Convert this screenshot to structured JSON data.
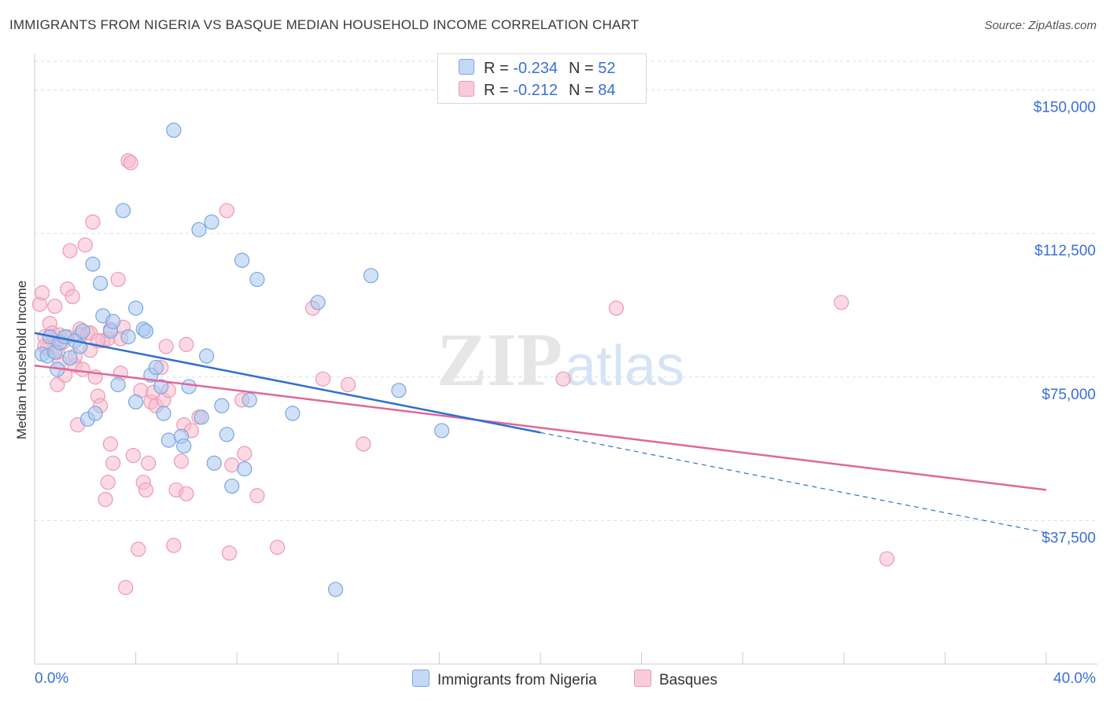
{
  "title": "IMMIGRANTS FROM NIGERIA VS BASQUE MEDIAN HOUSEHOLD INCOME CORRELATION CHART",
  "source": "Source: ZipAtlas.com",
  "watermark": {
    "zip": "ZIP",
    "atlas": "atlas"
  },
  "legend": {
    "rows": [
      {
        "r_label": "R =",
        "r_value": "-0.234",
        "n_label": "N =",
        "n_value": "52"
      },
      {
        "r_label": "R =",
        "r_value": "-0.212",
        "n_label": "N =",
        "n_value": "84"
      }
    ]
  },
  "colors": {
    "nigeria_fill": "#aac8f0",
    "nigeria_stroke": "#7aa6e0",
    "nigeria_line": "#2f6fd1",
    "basque_fill": "#f7bccd",
    "basque_stroke": "#ee98b3",
    "basque_line": "#e0679a",
    "axis_text": "#3a6fd6",
    "grid": "#dddddd"
  },
  "chart_data": {
    "type": "scatter",
    "title": "IMMIGRANTS FROM NIGERIA VS BASQUE MEDIAN HOUSEHOLD INCOME CORRELATION CHART",
    "xlabel": "",
    "ylabel": "Median Household Income",
    "xlim": [
      0,
      40
    ],
    "ylim": [
      0,
      157500
    ],
    "x_tick_labels": [
      "0.0%",
      "40.0%"
    ],
    "y_ticks": [
      37500,
      75000,
      112500,
      150000
    ],
    "y_tick_labels": [
      "$37,500",
      "$75,000",
      "$112,500",
      "$150,000"
    ],
    "grid": true,
    "legend_position": "top-center",
    "series": [
      {
        "name": "Immigrants from Nigeria",
        "color": "#aac8f0",
        "trend": {
          "x": [
            0.0,
            20.0
          ],
          "y": [
            86500,
            60500
          ],
          "dashed_extension": {
            "x": [
              20.0,
              40.0
            ],
            "y": [
              60500,
              34300
            ]
          }
        },
        "points": [
          [
            0.3,
            81000
          ],
          [
            0.5,
            80500
          ],
          [
            0.6,
            85500
          ],
          [
            0.8,
            81500
          ],
          [
            0.9,
            77000
          ],
          [
            1.0,
            84000
          ],
          [
            1.2,
            85500
          ],
          [
            1.4,
            80000
          ],
          [
            1.6,
            84500
          ],
          [
            1.8,
            83000
          ],
          [
            1.9,
            87000
          ],
          [
            2.1,
            64000
          ],
          [
            2.3,
            104500
          ],
          [
            2.4,
            65500
          ],
          [
            2.6,
            99500
          ],
          [
            2.7,
            91000
          ],
          [
            3.0,
            87000
          ],
          [
            3.1,
            89500
          ],
          [
            3.3,
            73000
          ],
          [
            3.5,
            118500
          ],
          [
            3.7,
            85500
          ],
          [
            4.0,
            93000
          ],
          [
            4.0,
            68500
          ],
          [
            4.3,
            87500
          ],
          [
            4.4,
            87000
          ],
          [
            4.6,
            75500
          ],
          [
            4.8,
            77500
          ],
          [
            5.0,
            72500
          ],
          [
            5.1,
            65500
          ],
          [
            5.3,
            58500
          ],
          [
            5.5,
            139500
          ],
          [
            5.8,
            59500
          ],
          [
            5.9,
            57000
          ],
          [
            6.1,
            72500
          ],
          [
            6.5,
            113500
          ],
          [
            6.6,
            64500
          ],
          [
            6.8,
            80500
          ],
          [
            7.0,
            115500
          ],
          [
            7.1,
            52500
          ],
          [
            7.4,
            67500
          ],
          [
            7.6,
            60000
          ],
          [
            7.8,
            46500
          ],
          [
            8.2,
            105500
          ],
          [
            8.3,
            51000
          ],
          [
            8.5,
            69000
          ],
          [
            8.8,
            100500
          ],
          [
            10.2,
            65500
          ],
          [
            11.2,
            94500
          ],
          [
            11.9,
            19500
          ],
          [
            13.3,
            101500
          ],
          [
            14.4,
            71500
          ],
          [
            16.1,
            61000
          ]
        ]
      },
      {
        "name": "Basques",
        "color": "#f7bccd",
        "trend": {
          "x": [
            0.0,
            40.0
          ],
          "y": [
            78000,
            45500
          ]
        },
        "points": [
          [
            0.2,
            94000
          ],
          [
            0.3,
            97000
          ],
          [
            0.4,
            85500
          ],
          [
            0.5,
            82500
          ],
          [
            0.6,
            89000
          ],
          [
            0.7,
            86500
          ],
          [
            0.8,
            93500
          ],
          [
            0.8,
            83000
          ],
          [
            0.9,
            73000
          ],
          [
            1.0,
            79000
          ],
          [
            1.1,
            84000
          ],
          [
            1.2,
            75500
          ],
          [
            1.3,
            98000
          ],
          [
            1.4,
            108000
          ],
          [
            1.5,
            96000
          ],
          [
            1.6,
            78000
          ],
          [
            1.7,
            62500
          ],
          [
            1.8,
            87500
          ],
          [
            1.9,
            77000
          ],
          [
            2.0,
            109500
          ],
          [
            2.1,
            86500
          ],
          [
            2.2,
            82000
          ],
          [
            2.3,
            115500
          ],
          [
            2.4,
            75000
          ],
          [
            2.5,
            70000
          ],
          [
            2.6,
            67500
          ],
          [
            2.7,
            84500
          ],
          [
            2.8,
            43000
          ],
          [
            2.9,
            47500
          ],
          [
            3.0,
            57500
          ],
          [
            3.1,
            52500
          ],
          [
            3.3,
            100500
          ],
          [
            3.4,
            76000
          ],
          [
            3.5,
            88000
          ],
          [
            3.6,
            20000
          ],
          [
            3.7,
            131500
          ],
          [
            3.8,
            131000
          ],
          [
            3.9,
            54500
          ],
          [
            4.1,
            30000
          ],
          [
            4.2,
            71500
          ],
          [
            4.3,
            47500
          ],
          [
            4.4,
            45500
          ],
          [
            4.5,
            52500
          ],
          [
            4.6,
            68500
          ],
          [
            4.7,
            71000
          ],
          [
            4.8,
            67500
          ],
          [
            5.0,
            77500
          ],
          [
            5.1,
            69000
          ],
          [
            5.2,
            83000
          ],
          [
            5.3,
            71500
          ],
          [
            5.5,
            31000
          ],
          [
            5.6,
            45500
          ],
          [
            5.8,
            53000
          ],
          [
            5.9,
            62500
          ],
          [
            6.0,
            44500
          ],
          [
            6.0,
            83500
          ],
          [
            6.2,
            61000
          ],
          [
            6.5,
            64500
          ],
          [
            7.6,
            118500
          ],
          [
            7.7,
            29000
          ],
          [
            7.8,
            52000
          ],
          [
            8.2,
            69000
          ],
          [
            8.3,
            55000
          ],
          [
            8.8,
            44000
          ],
          [
            9.6,
            30500
          ],
          [
            11.0,
            93000
          ],
          [
            11.4,
            74500
          ],
          [
            12.4,
            73000
          ],
          [
            13.0,
            57500
          ],
          [
            20.9,
            74500
          ],
          [
            23.0,
            93000
          ],
          [
            31.9,
            94500
          ],
          [
            33.7,
            27500
          ],
          [
            1.0,
            86000
          ],
          [
            1.6,
            80500
          ],
          [
            2.2,
            86500
          ],
          [
            2.9,
            85000
          ],
          [
            3.4,
            85000
          ],
          [
            0.4,
            83000
          ],
          [
            0.9,
            81500
          ],
          [
            1.3,
            85500
          ],
          [
            1.8,
            86000
          ],
          [
            2.5,
            84500
          ],
          [
            3.0,
            87500
          ]
        ]
      }
    ]
  },
  "bottom_legend": {
    "items": [
      "Immigrants from Nigeria",
      "Basques"
    ]
  }
}
